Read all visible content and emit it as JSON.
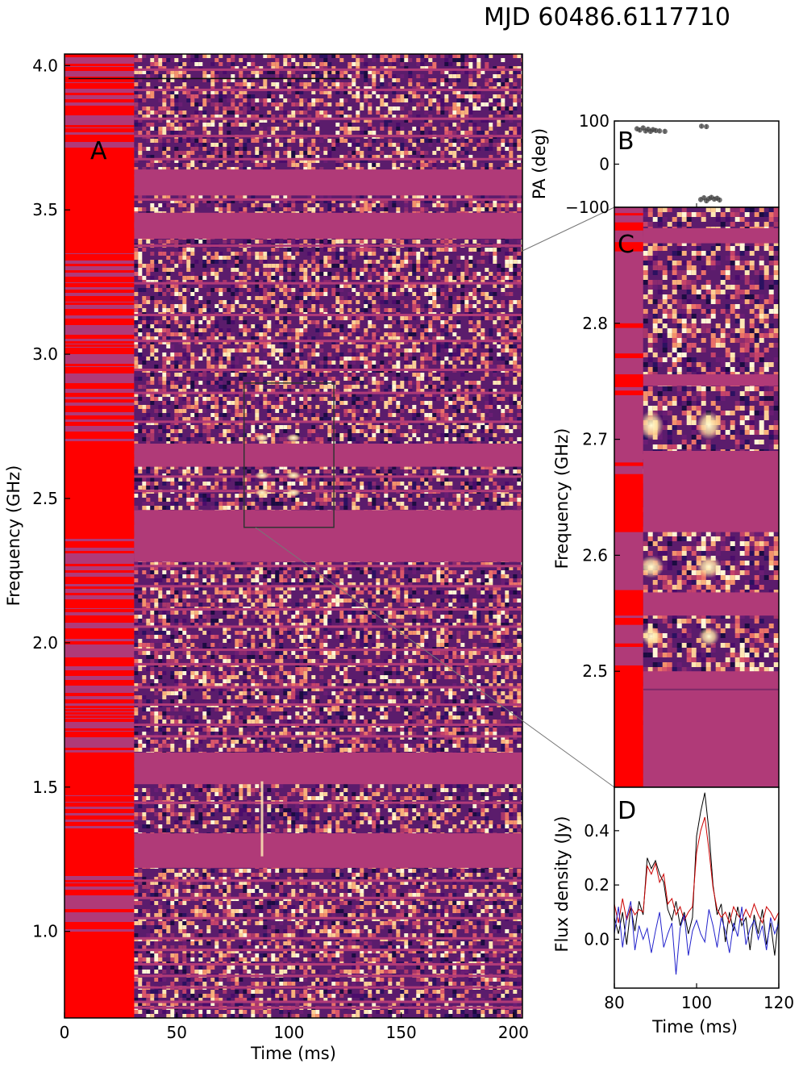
{
  "figure": {
    "title": "MJD 60486.6117710"
  },
  "chart_data": [
    {
      "panel_label": "A",
      "type": "heatmap",
      "xlabel": "Time (ms)",
      "ylabel": "Frequency (GHz)",
      "xlim": [
        0,
        204
      ],
      "ylim": [
        0.7,
        4.04
      ],
      "x_ticks": [
        "0",
        "50",
        "100",
        "150",
        "200"
      ],
      "y_ticks": [
        "1.0",
        "1.5",
        "2.0",
        "2.5",
        "3.0",
        "3.5",
        "4.0"
      ],
      "x_tick_values": [
        0,
        50,
        100,
        150,
        200
      ],
      "y_tick_values": [
        1.0,
        1.5,
        2.0,
        2.5,
        3.0,
        3.5,
        4.0
      ],
      "colormap": "magma",
      "flag_color": "#ff0000",
      "masked_color": "#b03a78",
      "flagged_time_range_ms": [
        0,
        31
      ],
      "masked_bands_ghz": [
        [
          3.64,
          3.55
        ],
        [
          3.49,
          3.4
        ],
        [
          2.69,
          2.61
        ],
        [
          2.46,
          2.28
        ],
        [
          1.62,
          1.51
        ],
        [
          1.34,
          1.22
        ]
      ],
      "zoom_box": {
        "time_ms": [
          80,
          120
        ],
        "freq_ghz": [
          2.4,
          2.9
        ]
      },
      "bursts": [
        {
          "time_ms": 88,
          "freq_ghz": [
            2.5,
            2.72
          ]
        },
        {
          "time_ms": 102,
          "freq_ghz": [
            2.5,
            2.72
          ]
        }
      ],
      "rfi_spike": {
        "time_ms": 88,
        "freq_ghz": [
          1.26,
          1.52
        ]
      }
    },
    {
      "panel_label": "B",
      "type": "scatter",
      "ylabel": "PA (deg)",
      "xlim": [
        80,
        120
      ],
      "ylim": [
        -100,
        100
      ],
      "y_ticks": [
        "100",
        "0",
        "−100"
      ],
      "y_tick_values": [
        100,
        0,
        -100
      ],
      "points": [
        {
          "x": 85.5,
          "y": 82
        },
        {
          "x": 86.2,
          "y": 79
        },
        {
          "x": 87.0,
          "y": 84
        },
        {
          "x": 87.6,
          "y": 77
        },
        {
          "x": 88.2,
          "y": 81
        },
        {
          "x": 88.8,
          "y": 76
        },
        {
          "x": 89.4,
          "y": 80
        },
        {
          "x": 90.1,
          "y": 78
        },
        {
          "x": 91.0,
          "y": 77
        },
        {
          "x": 92.3,
          "y": 76
        },
        {
          "x": 101.2,
          "y": 88
        },
        {
          "x": 102.4,
          "y": 87
        },
        {
          "x": 101.0,
          "y": -82
        },
        {
          "x": 101.8,
          "y": -78
        },
        {
          "x": 102.4,
          "y": -85
        },
        {
          "x": 103.0,
          "y": -80
        },
        {
          "x": 103.6,
          "y": -77
        },
        {
          "x": 104.3,
          "y": -81
        },
        {
          "x": 105.0,
          "y": -79
        },
        {
          "x": 105.6,
          "y": -83
        }
      ]
    },
    {
      "panel_label": "C",
      "type": "heatmap",
      "ylabel": "Frequency (GHz)",
      "xlim": [
        80,
        120
      ],
      "ylim": [
        2.4,
        2.9
      ],
      "y_ticks": [
        "2.5",
        "2.6",
        "2.7",
        "2.8"
      ],
      "y_tick_values": [
        2.5,
        2.6,
        2.7,
        2.8
      ],
      "colormap": "magma",
      "flagged_time_range_ms": [
        80,
        87
      ],
      "masked_bands_ghz": [
        [
          2.882,
          2.869
        ],
        [
          2.756,
          2.746
        ],
        [
          2.69,
          2.62
        ],
        [
          2.568,
          2.548
        ],
        [
          2.5,
          2.4
        ]
      ],
      "bursts": [
        {
          "time_ms": 89,
          "freq_ghz": [
            2.52,
            2.72
          ]
        },
        {
          "time_ms": 103,
          "freq_ghz": [
            2.52,
            2.72
          ]
        }
      ]
    },
    {
      "panel_label": "D",
      "type": "line",
      "xlabel": "Time (ms)",
      "ylabel": "Flux density (Jy)",
      "xlim": [
        80,
        120
      ],
      "ylim": [
        -0.18,
        0.56
      ],
      "x_ticks": [
        "80",
        "100",
        "120"
      ],
      "x_tick_values": [
        80,
        100,
        120
      ],
      "y_ticks": [
        "0.0",
        "0.2",
        "0.4"
      ],
      "y_tick_values": [
        0.0,
        0.2,
        0.4
      ],
      "x": [
        80,
        81,
        82,
        83,
        84,
        85,
        86,
        87,
        88,
        89,
        90,
        91,
        92,
        93,
        94,
        95,
        96,
        97,
        98,
        99,
        100,
        101,
        102,
        103,
        104,
        105,
        106,
        107,
        108,
        109,
        110,
        111,
        112,
        113,
        114,
        115,
        116,
        117,
        118,
        119,
        120
      ],
      "series": [
        {
          "color": "#000000",
          "values": [
            0.08,
            0.02,
            0.1,
            -0.02,
            0.12,
            0.03,
            0.14,
            0.09,
            0.3,
            0.26,
            0.29,
            0.24,
            0.21,
            0.11,
            0.07,
            0.14,
            0.05,
            0.1,
            0.02,
            0.08,
            0.38,
            0.47,
            0.54,
            0.4,
            0.2,
            0.09,
            0.13,
            -0.01,
            0.1,
            0.03,
            0.12,
            0.05,
            0.08,
            -0.04,
            0.09,
            0.02,
            0.11,
            -0.02,
            0.06,
            -0.06,
            0.09
          ]
        },
        {
          "color": "#cc0000",
          "values": [
            0.13,
            0.06,
            0.15,
            0.07,
            0.12,
            0.09,
            0.11,
            0.1,
            0.27,
            0.24,
            0.28,
            0.21,
            0.24,
            0.13,
            0.15,
            0.09,
            0.12,
            0.07,
            0.1,
            0.12,
            0.32,
            0.4,
            0.45,
            0.33,
            0.19,
            0.11,
            0.08,
            0.1,
            0.06,
            0.12,
            0.09,
            0.07,
            0.11,
            0.08,
            0.13,
            0.09,
            0.06,
            0.12,
            0.1,
            0.07,
            0.1
          ]
        },
        {
          "color": "#2222cc",
          "values": [
            0.02,
            0.12,
            -0.03,
            0.08,
            0.14,
            -0.04,
            0.05,
            0.0,
            0.04,
            -0.05,
            0.03,
            0.1,
            -0.03,
            0.02,
            0.06,
            -0.13,
            0.04,
            0.09,
            -0.06,
            0.03,
            0.07,
            0.02,
            -0.01,
            0.11,
            0.05,
            -0.03,
            0.08,
            0.03,
            -0.05,
            0.06,
            0.01,
            0.12,
            -0.02,
            0.04,
            0.07,
            0.0,
            0.05,
            -0.04,
            0.08,
            0.02,
            0.06
          ]
        }
      ]
    }
  ]
}
